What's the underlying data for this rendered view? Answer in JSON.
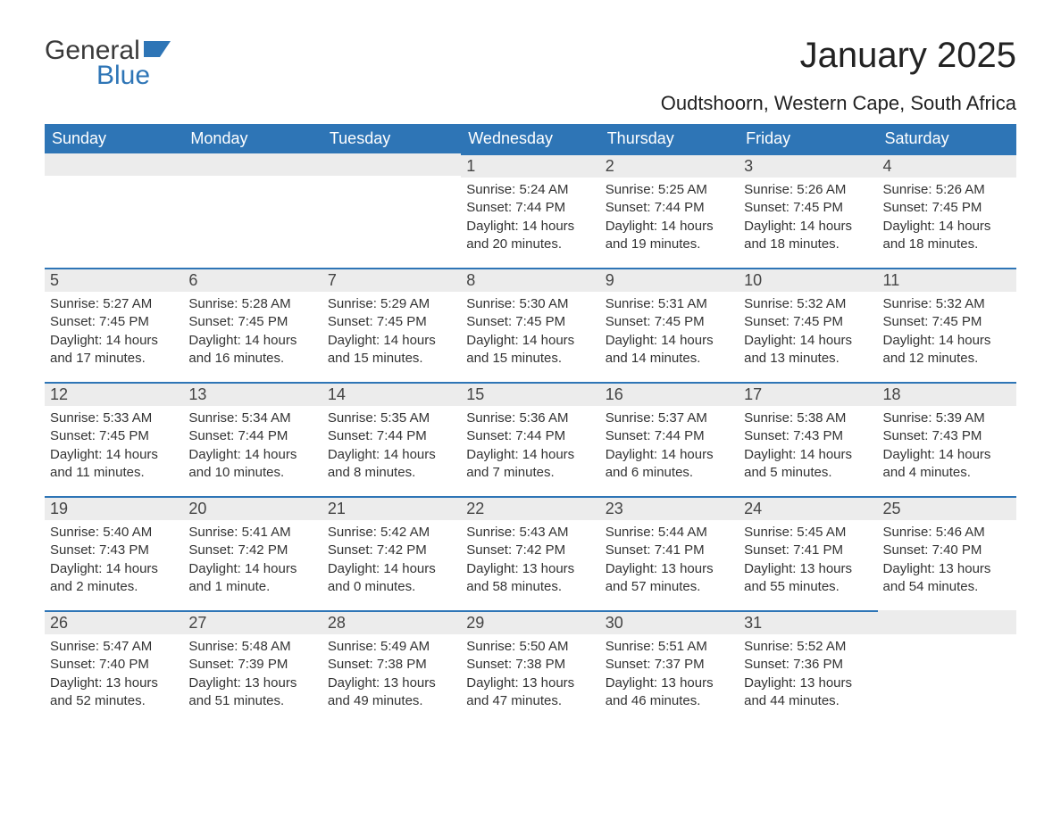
{
  "logo": {
    "text_general": "General",
    "text_blue": "Blue"
  },
  "title": "January 2025",
  "location": "Oudtshoorn, Western Cape, South Africa",
  "colors": {
    "header_bg": "#2e75b6",
    "header_text": "#ffffff",
    "daynum_bg": "#ececec",
    "cell_border_top": "#2e75b6",
    "body_text": "#333333",
    "page_bg": "#ffffff",
    "logo_general": "#3a3a3a",
    "logo_blue": "#2e75b6"
  },
  "typography": {
    "title_fontsize": 40,
    "location_fontsize": 22,
    "dayheader_fontsize": 18,
    "daynum_fontsize": 18,
    "body_fontsize": 15,
    "font_family": "Arial"
  },
  "day_headers": [
    "Sunday",
    "Monday",
    "Tuesday",
    "Wednesday",
    "Thursday",
    "Friday",
    "Saturday"
  ],
  "weeks": [
    [
      null,
      null,
      null,
      {
        "n": "1",
        "sr": "Sunrise: 5:24 AM",
        "ss": "Sunset: 7:44 PM",
        "dl": "Daylight: 14 hours and 20 minutes."
      },
      {
        "n": "2",
        "sr": "Sunrise: 5:25 AM",
        "ss": "Sunset: 7:44 PM",
        "dl": "Daylight: 14 hours and 19 minutes."
      },
      {
        "n": "3",
        "sr": "Sunrise: 5:26 AM",
        "ss": "Sunset: 7:45 PM",
        "dl": "Daylight: 14 hours and 18 minutes."
      },
      {
        "n": "4",
        "sr": "Sunrise: 5:26 AM",
        "ss": "Sunset: 7:45 PM",
        "dl": "Daylight: 14 hours and 18 minutes."
      }
    ],
    [
      {
        "n": "5",
        "sr": "Sunrise: 5:27 AM",
        "ss": "Sunset: 7:45 PM",
        "dl": "Daylight: 14 hours and 17 minutes."
      },
      {
        "n": "6",
        "sr": "Sunrise: 5:28 AM",
        "ss": "Sunset: 7:45 PM",
        "dl": "Daylight: 14 hours and 16 minutes."
      },
      {
        "n": "7",
        "sr": "Sunrise: 5:29 AM",
        "ss": "Sunset: 7:45 PM",
        "dl": "Daylight: 14 hours and 15 minutes."
      },
      {
        "n": "8",
        "sr": "Sunrise: 5:30 AM",
        "ss": "Sunset: 7:45 PM",
        "dl": "Daylight: 14 hours and 15 minutes."
      },
      {
        "n": "9",
        "sr": "Sunrise: 5:31 AM",
        "ss": "Sunset: 7:45 PM",
        "dl": "Daylight: 14 hours and 14 minutes."
      },
      {
        "n": "10",
        "sr": "Sunrise: 5:32 AM",
        "ss": "Sunset: 7:45 PM",
        "dl": "Daylight: 14 hours and 13 minutes."
      },
      {
        "n": "11",
        "sr": "Sunrise: 5:32 AM",
        "ss": "Sunset: 7:45 PM",
        "dl": "Daylight: 14 hours and 12 minutes."
      }
    ],
    [
      {
        "n": "12",
        "sr": "Sunrise: 5:33 AM",
        "ss": "Sunset: 7:45 PM",
        "dl": "Daylight: 14 hours and 11 minutes."
      },
      {
        "n": "13",
        "sr": "Sunrise: 5:34 AM",
        "ss": "Sunset: 7:44 PM",
        "dl": "Daylight: 14 hours and 10 minutes."
      },
      {
        "n": "14",
        "sr": "Sunrise: 5:35 AM",
        "ss": "Sunset: 7:44 PM",
        "dl": "Daylight: 14 hours and 8 minutes."
      },
      {
        "n": "15",
        "sr": "Sunrise: 5:36 AM",
        "ss": "Sunset: 7:44 PM",
        "dl": "Daylight: 14 hours and 7 minutes."
      },
      {
        "n": "16",
        "sr": "Sunrise: 5:37 AM",
        "ss": "Sunset: 7:44 PM",
        "dl": "Daylight: 14 hours and 6 minutes."
      },
      {
        "n": "17",
        "sr": "Sunrise: 5:38 AM",
        "ss": "Sunset: 7:43 PM",
        "dl": "Daylight: 14 hours and 5 minutes."
      },
      {
        "n": "18",
        "sr": "Sunrise: 5:39 AM",
        "ss": "Sunset: 7:43 PM",
        "dl": "Daylight: 14 hours and 4 minutes."
      }
    ],
    [
      {
        "n": "19",
        "sr": "Sunrise: 5:40 AM",
        "ss": "Sunset: 7:43 PM",
        "dl": "Daylight: 14 hours and 2 minutes."
      },
      {
        "n": "20",
        "sr": "Sunrise: 5:41 AM",
        "ss": "Sunset: 7:42 PM",
        "dl": "Daylight: 14 hours and 1 minute."
      },
      {
        "n": "21",
        "sr": "Sunrise: 5:42 AM",
        "ss": "Sunset: 7:42 PM",
        "dl": "Daylight: 14 hours and 0 minutes."
      },
      {
        "n": "22",
        "sr": "Sunrise: 5:43 AM",
        "ss": "Sunset: 7:42 PM",
        "dl": "Daylight: 13 hours and 58 minutes."
      },
      {
        "n": "23",
        "sr": "Sunrise: 5:44 AM",
        "ss": "Sunset: 7:41 PM",
        "dl": "Daylight: 13 hours and 57 minutes."
      },
      {
        "n": "24",
        "sr": "Sunrise: 5:45 AM",
        "ss": "Sunset: 7:41 PM",
        "dl": "Daylight: 13 hours and 55 minutes."
      },
      {
        "n": "25",
        "sr": "Sunrise: 5:46 AM",
        "ss": "Sunset: 7:40 PM",
        "dl": "Daylight: 13 hours and 54 minutes."
      }
    ],
    [
      {
        "n": "26",
        "sr": "Sunrise: 5:47 AM",
        "ss": "Sunset: 7:40 PM",
        "dl": "Daylight: 13 hours and 52 minutes."
      },
      {
        "n": "27",
        "sr": "Sunrise: 5:48 AM",
        "ss": "Sunset: 7:39 PM",
        "dl": "Daylight: 13 hours and 51 minutes."
      },
      {
        "n": "28",
        "sr": "Sunrise: 5:49 AM",
        "ss": "Sunset: 7:38 PM",
        "dl": "Daylight: 13 hours and 49 minutes."
      },
      {
        "n": "29",
        "sr": "Sunrise: 5:50 AM",
        "ss": "Sunset: 7:38 PM",
        "dl": "Daylight: 13 hours and 47 minutes."
      },
      {
        "n": "30",
        "sr": "Sunrise: 5:51 AM",
        "ss": "Sunset: 7:37 PM",
        "dl": "Daylight: 13 hours and 46 minutes."
      },
      {
        "n": "31",
        "sr": "Sunrise: 5:52 AM",
        "ss": "Sunset: 7:36 PM",
        "dl": "Daylight: 13 hours and 44 minutes."
      },
      null
    ]
  ]
}
